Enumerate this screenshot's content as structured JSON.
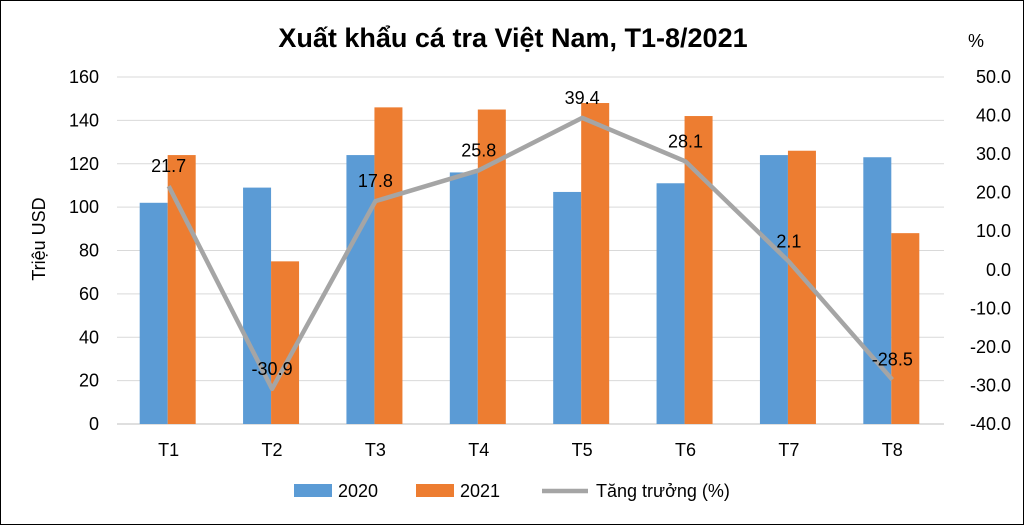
{
  "chart_data": {
    "type": "bar",
    "title": "Xuất khẩu cá tra Việt Nam, T1-8/2021",
    "ylabel": "Triệu USD",
    "y2label": "%",
    "categories": [
      "T1",
      "T2",
      "T3",
      "T4",
      "T5",
      "T6",
      "T7",
      "T8"
    ],
    "ylim": [
      0,
      160
    ],
    "yticks": [
      "0",
      "20",
      "40",
      "60",
      "80",
      "100",
      "120",
      "140",
      "160"
    ],
    "y2lim": [
      -40,
      50
    ],
    "y2ticks": [
      "-40.0",
      "-30.0",
      "-20.0",
      "-10.0",
      "0.0",
      "10.0",
      "20.0",
      "30.0",
      "40.0",
      "50.0"
    ],
    "grid": true,
    "legend_position": "bottom",
    "series": [
      {
        "name": "2020",
        "type": "bar",
        "axis": "left",
        "color": "#5B9BD5",
        "values": [
          102,
          109,
          124,
          116,
          107,
          111,
          124,
          123
        ]
      },
      {
        "name": "2021",
        "type": "bar",
        "axis": "left",
        "color": "#ED7D31",
        "values": [
          124,
          75,
          146,
          145,
          148,
          142,
          126,
          88
        ]
      },
      {
        "name": "Tăng trưởng (%)",
        "type": "line",
        "axis": "right",
        "color": "#A5A5A5",
        "values": [
          21.7,
          -30.9,
          17.8,
          25.8,
          39.4,
          28.1,
          2.1,
          -28.5
        ],
        "labels": [
          "21.7",
          "-30.9",
          "17.8",
          "25.8",
          "39.4",
          "28.1",
          "2.1",
          "-28.5"
        ]
      }
    ]
  }
}
